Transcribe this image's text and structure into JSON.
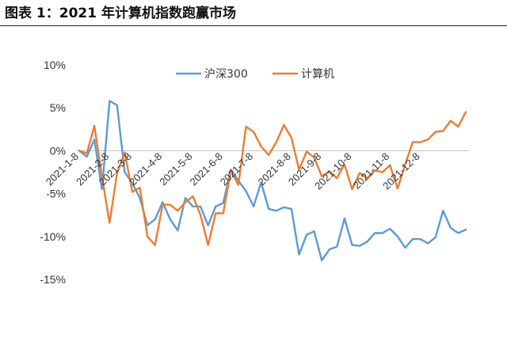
{
  "title": "图表 1：2021 年计算机指数跑赢市场",
  "colors": {
    "csi300": "#5B9BD5",
    "computer": "#ED7D31"
  },
  "chart_data": {
    "type": "line",
    "ylim": [
      -15,
      10
    ],
    "yticks": [
      10,
      5,
      0,
      -5,
      -10,
      -15
    ],
    "ytick_labels": [
      "10%",
      "5%",
      "0%",
      "-5%",
      "-10%",
      "-15%"
    ],
    "xticks": [
      {
        "label": "2021-1-8",
        "index": 0
      },
      {
        "label": "2021-2-8",
        "index": 4
      },
      {
        "label": "2021-3-8",
        "index": 7
      },
      {
        "label": "2021-4-8",
        "index": 11
      },
      {
        "label": "2021-5-8",
        "index": 15
      },
      {
        "label": "2021-6-8",
        "index": 19
      },
      {
        "label": "2021-7-8",
        "index": 23
      },
      {
        "label": "2021-8-8",
        "index": 28
      },
      {
        "label": "2021-9-8",
        "index": 32
      },
      {
        "label": "2021-10-8",
        "index": 36
      },
      {
        "label": "2021-11-8",
        "index": 41
      },
      {
        "label": "2021-12-8",
        "index": 45
      }
    ],
    "legend_position": "top-center",
    "grid": false,
    "series": [
      {
        "name": "沪深300",
        "color_key": "csi300",
        "values": [
          0,
          -0.7,
          1.3,
          -4.5,
          5.8,
          5.3,
          -2.5,
          -3.8,
          -5.5,
          -8.7,
          -8.0,
          -6.0,
          -8.0,
          -9.3,
          -5.5,
          -6.5,
          -6.5,
          -8.7,
          -6.5,
          -6.1,
          -2.2,
          -3.5,
          -4.7,
          -6.5,
          -3.7,
          -6.8,
          -7.0,
          -6.6,
          -6.8,
          -12.1,
          -9.8,
          -9.4,
          -12.8,
          -11.5,
          -11.2,
          -7.9,
          -11.0,
          -11.1,
          -10.6,
          -9.6,
          -9.6,
          -9.1,
          -10.0,
          -11.3,
          -10.3,
          -10.3,
          -10.8,
          -10.1,
          -7.0,
          -9.0,
          -9.6,
          -9.2
        ]
      },
      {
        "name": "计算机",
        "color_key": "computer",
        "values": [
          0,
          -0.3,
          2.9,
          -3.0,
          -8.4,
          -2.6,
          -0.2,
          -4.8,
          -4.3,
          -10.0,
          -11.0,
          -6.3,
          -6.3,
          -7.0,
          -6.0,
          -5.3,
          -7.5,
          -11.0,
          -7.3,
          -7.3,
          -2.3,
          -4.0,
          2.8,
          2.2,
          0.5,
          -0.5,
          1.0,
          3.0,
          1.5,
          -2.2,
          -0.1,
          -0.8,
          -3.0,
          -2.4,
          -3.2,
          -1.6,
          -4.5,
          -2.6,
          -3.2,
          -2.3,
          -2.5,
          -1.7,
          -4.4,
          -1.6,
          1.0,
          1.0,
          1.3,
          2.2,
          2.3,
          3.5,
          2.8,
          4.5
        ]
      }
    ]
  }
}
